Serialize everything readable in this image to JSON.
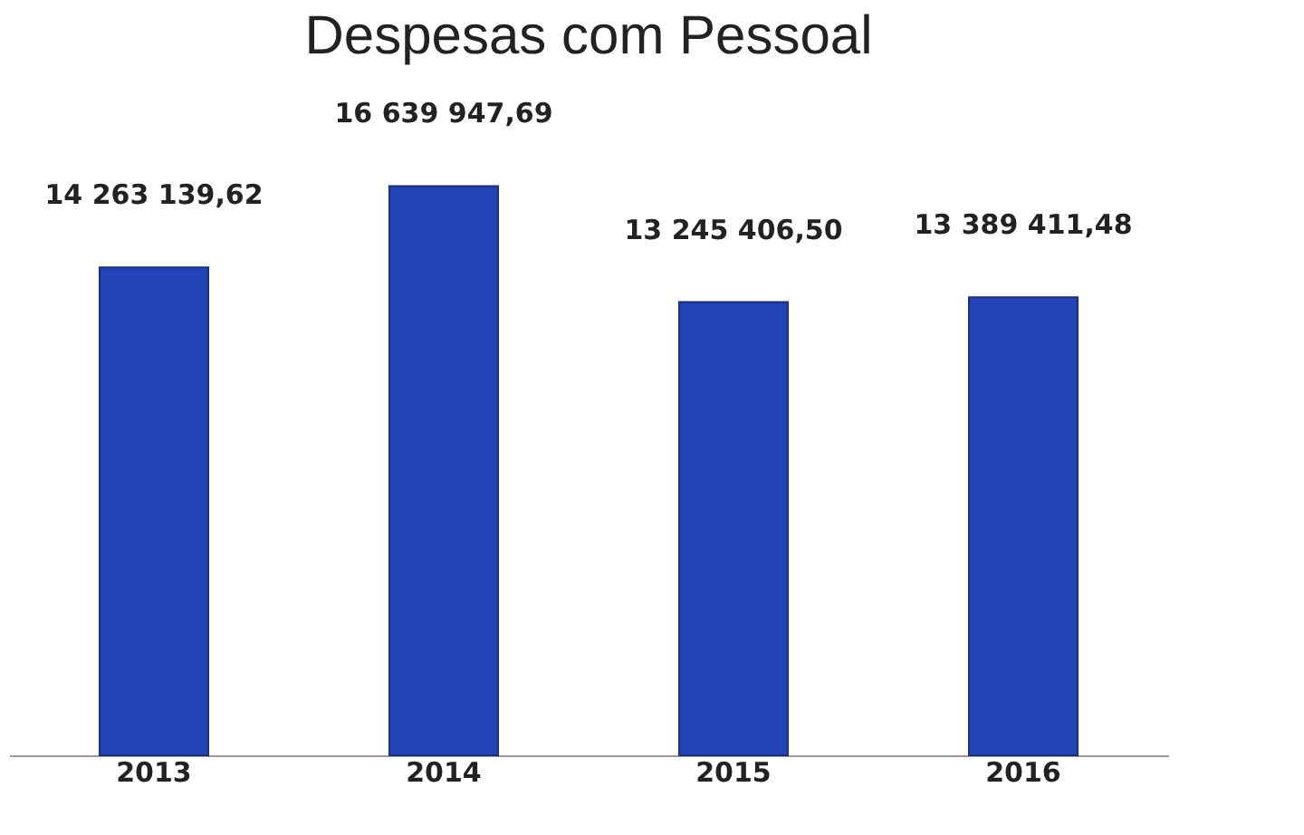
{
  "chart_data": {
    "type": "bar",
    "title": "Despesas com Pessoal",
    "categories": [
      "2013",
      "2014",
      "2015",
      "2016"
    ],
    "values": [
      14263139.62,
      16639947.69,
      13245406.5,
      13389411.48
    ],
    "value_labels": [
      "14 263 139,62",
      "16 639 947,69",
      "13 245 406,50",
      "13 389 411,48"
    ],
    "color": "#2343b8",
    "grid": false
  }
}
